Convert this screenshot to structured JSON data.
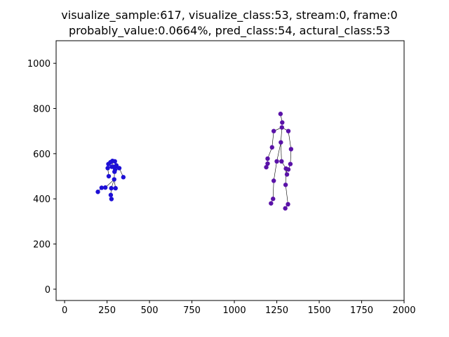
{
  "figure": {
    "title_line1": "visualize_sample:617, visualize_class:53, stream:0, frame:0",
    "title_line2": "probably_value:0.0664%, pred_class:54, actural_class:53"
  },
  "chart_data": {
    "type": "scatter",
    "title": "visualize_sample:617, visualize_class:53, stream:0, frame:0\nprobably_value:0.0664%, pred_class:54, actural_class:53",
    "xlabel": "",
    "ylabel": "",
    "xlim": [
      -50,
      2000
    ],
    "ylim": [
      -50,
      1100
    ],
    "xticks": [
      0,
      250,
      500,
      750,
      1000,
      1250,
      1500,
      1750,
      2000
    ],
    "yticks": [
      0,
      200,
      400,
      600,
      800,
      1000
    ],
    "grid": false,
    "bone_color": "#000000",
    "series": [
      {
        "color": "#1e10d6",
        "points": [
          [
            282,
            568
          ],
          [
            296,
            566
          ],
          [
            270,
            562
          ],
          [
            305,
            548
          ],
          [
            258,
            554
          ],
          [
            286,
            542
          ],
          [
            322,
            536
          ],
          [
            278,
            542
          ],
          [
            254,
            536
          ],
          [
            298,
            530
          ],
          [
            294,
            520
          ],
          [
            260,
            500
          ],
          [
            346,
            496
          ],
          [
            292,
            486
          ],
          [
            240,
            450
          ],
          [
            275,
            447
          ],
          [
            300,
            447
          ],
          [
            218,
            449
          ],
          [
            196,
            431
          ],
          [
            272,
            417
          ],
          [
            276,
            399
          ]
        ],
        "bones": [
          [
            0,
            1
          ],
          [
            0,
            2
          ],
          [
            0,
            5
          ],
          [
            1,
            3
          ],
          [
            2,
            4
          ],
          [
            5,
            6
          ],
          [
            5,
            7
          ],
          [
            7,
            8
          ],
          [
            5,
            9
          ],
          [
            9,
            10
          ],
          [
            10,
            13
          ],
          [
            8,
            11
          ],
          [
            6,
            12
          ],
          [
            13,
            14
          ],
          [
            13,
            15
          ],
          [
            13,
            16
          ],
          [
            14,
            17
          ],
          [
            17,
            18
          ],
          [
            15,
            19
          ],
          [
            19,
            20
          ]
        ]
      },
      {
        "color": "#5a12a8",
        "points": [
          [
            1272,
            776
          ],
          [
            1282,
            738
          ],
          [
            1280,
            716
          ],
          [
            1232,
            700
          ],
          [
            1318,
            700
          ],
          [
            1274,
            650
          ],
          [
            1222,
            628
          ],
          [
            1334,
            620
          ],
          [
            1196,
            578
          ],
          [
            1250,
            566
          ],
          [
            1278,
            566
          ],
          [
            1196,
            556
          ],
          [
            1330,
            554
          ],
          [
            1188,
            540
          ],
          [
            1304,
            534
          ],
          [
            1318,
            530
          ],
          [
            1310,
            508
          ],
          [
            1232,
            480
          ],
          [
            1302,
            462
          ],
          [
            1228,
            400
          ],
          [
            1216,
            380
          ],
          [
            1316,
            376
          ],
          [
            1300,
            358
          ]
        ],
        "bones": [
          [
            0,
            1
          ],
          [
            1,
            2
          ],
          [
            2,
            3
          ],
          [
            2,
            4
          ],
          [
            3,
            6
          ],
          [
            6,
            8
          ],
          [
            8,
            11
          ],
          [
            11,
            13
          ],
          [
            4,
            7
          ],
          [
            7,
            12
          ],
          [
            12,
            15
          ],
          [
            2,
            5
          ],
          [
            5,
            9
          ],
          [
            5,
            10
          ],
          [
            9,
            17
          ],
          [
            17,
            19
          ],
          [
            19,
            20
          ],
          [
            10,
            14
          ],
          [
            14,
            16
          ],
          [
            14,
            18
          ],
          [
            18,
            21
          ],
          [
            21,
            22
          ]
        ]
      }
    ]
  }
}
